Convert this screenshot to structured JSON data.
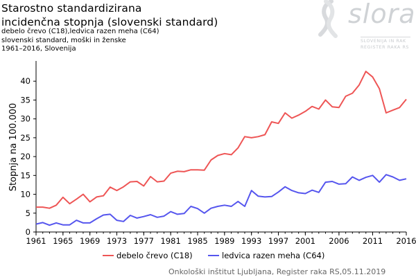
{
  "header": {
    "title_line1": "Starostno standardizirana",
    "title_line2": "incidenčna stopnja (slovenski standard)",
    "sub_line1": "debelo črevo  (C18),ledvica razen meha  (C64)",
    "sub_line2": "slovenski standard, moški in ženske",
    "sub_line3": "1961–2016,  Slovenija"
  },
  "logo": {
    "word": "slora",
    "line1": "SLOVENIJA IN RAK",
    "line2": "REGISTER RAKA RS"
  },
  "footer": "Onkološki inštitut Ljubljana, Register raka RS,05.11.2019",
  "colors": {
    "series1": "#ee5555",
    "series2": "#5555ee",
    "axis": "#000000",
    "logo": "#cfd2d5"
  },
  "chart_data": {
    "type": "line",
    "ylabel": "Stopnja na 100.000",
    "xlabel": "",
    "ylim": [
      0,
      45
    ],
    "xlim": [
      1961,
      2016
    ],
    "yticks": [
      0,
      5,
      10,
      15,
      20,
      25,
      30,
      35,
      40
    ],
    "xticks": [
      1961,
      1965,
      1969,
      1973,
      1977,
      1981,
      1985,
      1989,
      1993,
      1997,
      2001,
      2006,
      2011,
      2016
    ],
    "grid": false,
    "legend_position": "bottom",
    "x": [
      1961,
      1962,
      1963,
      1964,
      1965,
      1966,
      1967,
      1968,
      1969,
      1970,
      1971,
      1972,
      1973,
      1974,
      1975,
      1976,
      1977,
      1978,
      1979,
      1980,
      1981,
      1982,
      1983,
      1984,
      1985,
      1986,
      1987,
      1988,
      1989,
      1990,
      1991,
      1992,
      1993,
      1994,
      1995,
      1996,
      1997,
      1998,
      1999,
      2000,
      2001,
      2002,
      2003,
      2004,
      2005,
      2006,
      2007,
      2008,
      2009,
      2010,
      2011,
      2012,
      2013,
      2014,
      2015,
      2016
    ],
    "series": [
      {
        "name": "debelo črevo (C18)",
        "color": "#ee5555",
        "values": [
          6.6,
          6.6,
          6.3,
          7.1,
          9.2,
          7.5,
          8.7,
          10.0,
          8.0,
          9.3,
          9.6,
          11.9,
          11.0,
          12.0,
          13.3,
          13.4,
          12.2,
          14.7,
          13.3,
          13.5,
          15.6,
          16.1,
          16.0,
          16.5,
          16.5,
          16.4,
          19.1,
          20.3,
          20.8,
          20.5,
          22.3,
          25.3,
          25.0,
          25.3,
          25.8,
          29.2,
          28.8,
          31.6,
          30.2,
          31.0,
          32.0,
          33.3,
          32.6,
          35.0,
          33.2,
          33.0,
          36.0,
          36.8,
          39.0,
          42.6,
          41.1,
          38.0,
          31.6,
          32.3,
          33.0,
          35.2
        ]
      },
      {
        "name": "ledvica razen meha (C64)",
        "color": "#5555ee",
        "values": [
          2.1,
          2.5,
          1.8,
          2.4,
          1.9,
          1.9,
          3.1,
          2.4,
          2.4,
          3.5,
          4.5,
          4.7,
          3.1,
          2.8,
          4.4,
          3.7,
          4.1,
          4.6,
          3.9,
          4.2,
          5.4,
          4.7,
          4.9,
          6.8,
          6.2,
          5.0,
          6.3,
          6.8,
          7.1,
          6.8,
          8.1,
          6.8,
          11.0,
          9.5,
          9.3,
          9.4,
          10.6,
          12.0,
          11.0,
          10.4,
          10.2,
          11.1,
          10.5,
          13.2,
          13.4,
          12.7,
          12.8,
          14.6,
          13.7,
          14.5,
          15.0,
          13.2,
          15.2,
          14.6,
          13.7,
          14.1
        ]
      }
    ]
  }
}
